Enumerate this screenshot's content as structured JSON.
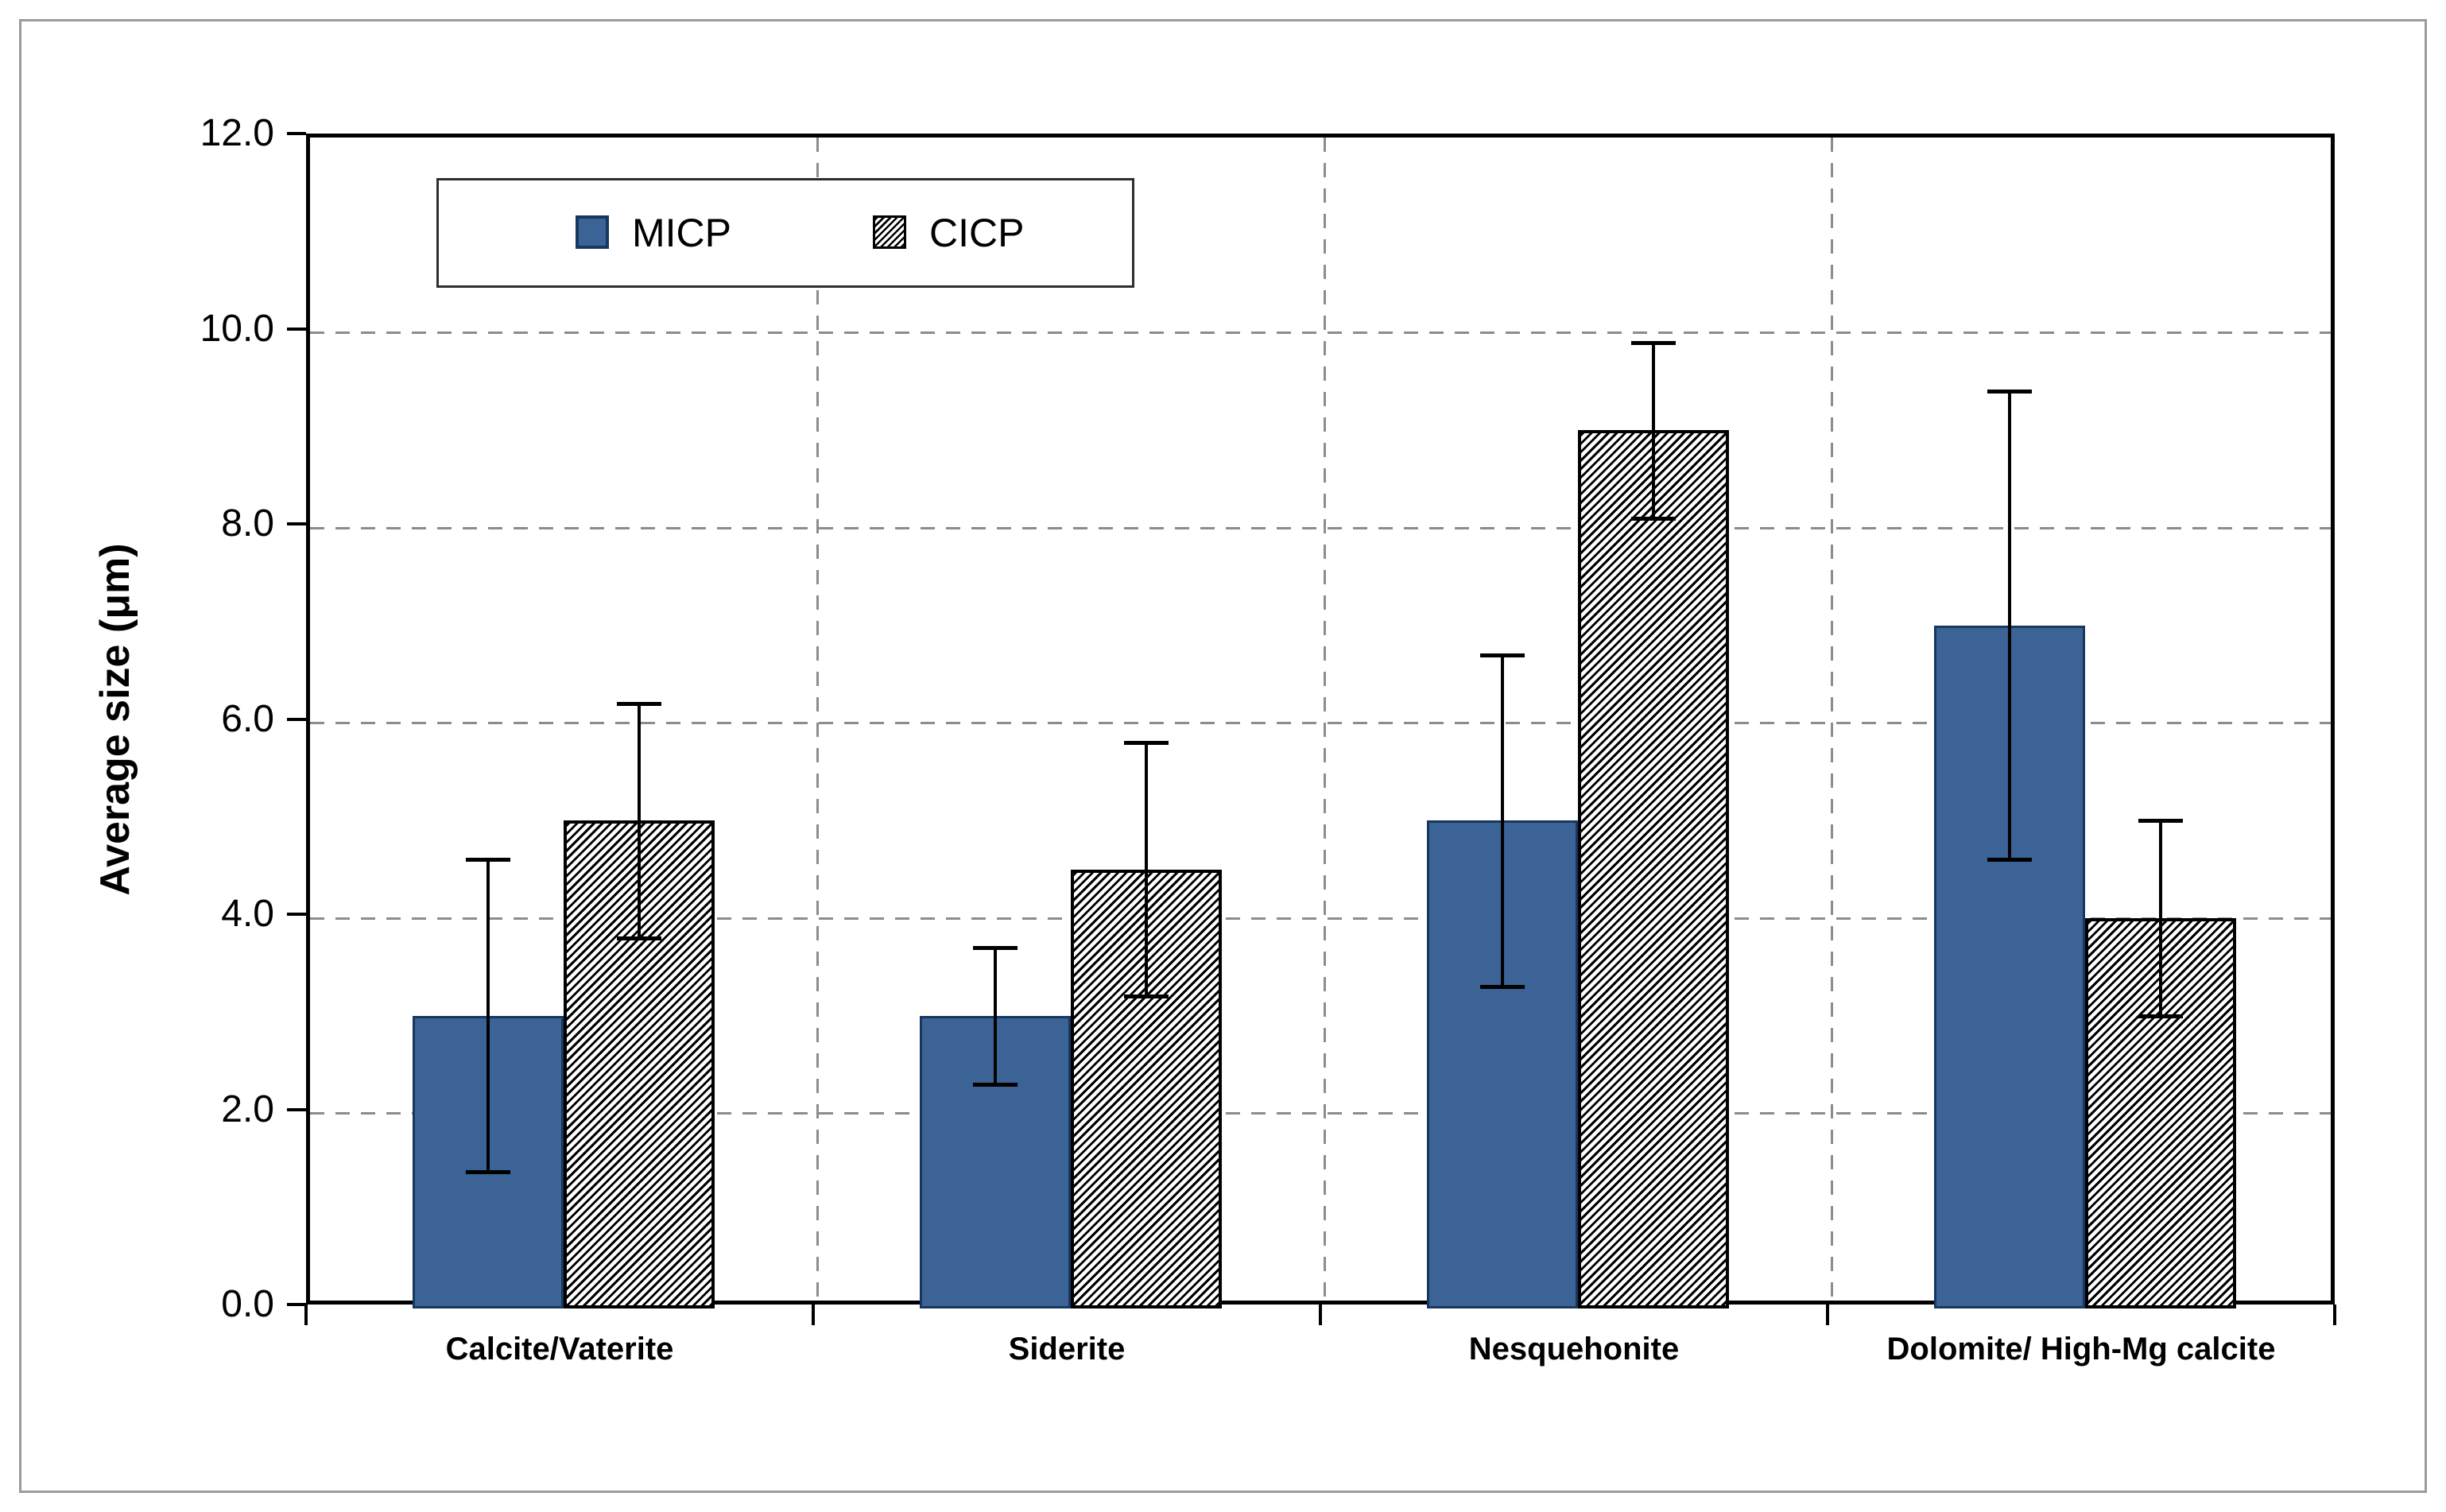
{
  "window": {
    "background": "#ffffff",
    "frame_border_color": "#9b9b9b"
  },
  "chart_data": {
    "type": "bar",
    "title": "",
    "xlabel": "",
    "ylabel": "Average size (μm)",
    "ylim": [
      0,
      12
    ],
    "ytick_interval": 2,
    "ytick_labels": [
      "0.0",
      "2.0",
      "4.0",
      "6.0",
      "8.0",
      "10.0",
      "12.0"
    ],
    "grid": "dashed horizontal gridlines at each ytick; dashed vertical separators between categories",
    "gridline_color": "#8c8c8c",
    "axis_color": "#000000",
    "error_bar_color": "#000000",
    "legend_position": "inside-top-left",
    "categories": [
      "Calcite/Vaterite",
      "Siderite",
      "Nesquehonite",
      "Dolomite/ High-Mg calcite"
    ],
    "series": [
      {
        "name": "MICP",
        "pattern": "solid",
        "fill_color": "#3b6396",
        "border_color": "#17375e",
        "values": [
          3.0,
          3.0,
          5.0,
          7.0
        ],
        "error_minus": [
          1.6,
          0.7,
          1.7,
          2.4
        ],
        "error_plus": [
          1.6,
          0.7,
          1.7,
          2.4
        ]
      },
      {
        "name": "CICP",
        "pattern": "diagonal-hatch",
        "fill_color": "#ffffff",
        "hatch_color": "#000000",
        "border_color": "#000000",
        "values": [
          5.0,
          4.5,
          9.0,
          4.0
        ],
        "error_minus": [
          1.2,
          1.3,
          0.9,
          1.0
        ],
        "error_plus": [
          1.2,
          1.3,
          0.9,
          1.0
        ]
      }
    ]
  },
  "legend": {
    "items": [
      {
        "label": "MICP"
      },
      {
        "label": "CICP"
      }
    ]
  }
}
